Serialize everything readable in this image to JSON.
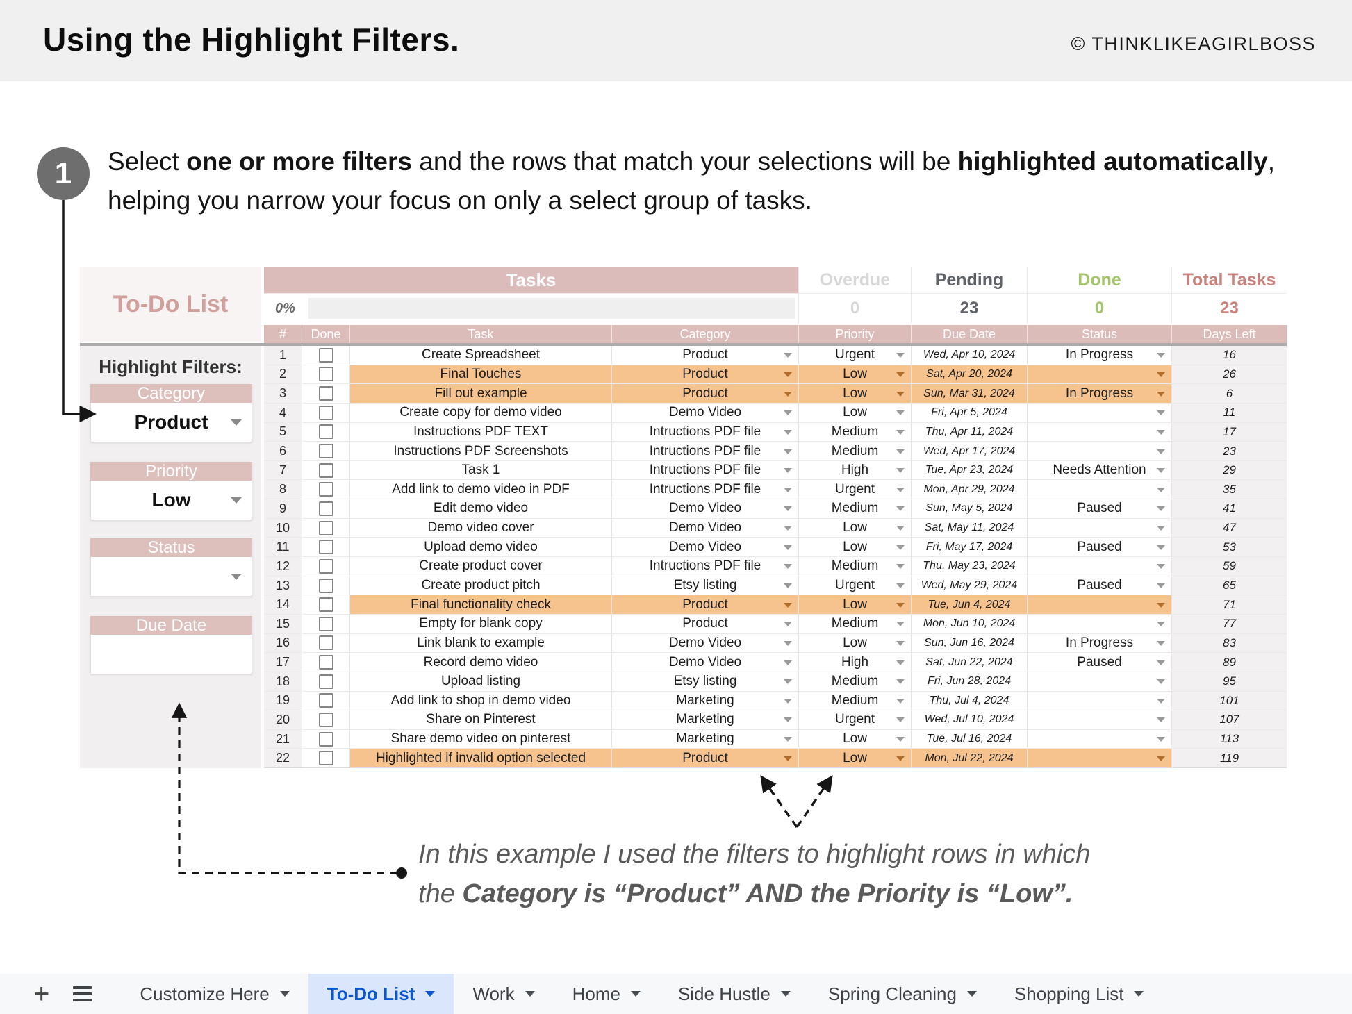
{
  "header": {
    "title": "Using the Highlight Filters.",
    "copyright": "© THINKLIKEAGIRLBOSS"
  },
  "step": {
    "number": "1",
    "t1": "Select ",
    "b1": "one or more filters",
    "t2": " and the rows that match your selections will be ",
    "b2": "highlighted automatically",
    "t3": ", helping you narrow your focus on only a select group of tasks."
  },
  "sheet": {
    "title": "To-Do List",
    "tasks_header": "Tasks",
    "progress": "0%",
    "stats": [
      {
        "label": "Overdue",
        "value": "0",
        "color": "#d8d8d8"
      },
      {
        "label": "Pending",
        "value": "23",
        "color": "#5f6368"
      },
      {
        "label": "Done",
        "value": "0",
        "color": "#a5c46c"
      },
      {
        "label": "Total Tasks",
        "value": "23",
        "color": "#c9837e"
      }
    ],
    "columns": [
      "#",
      "Done",
      "Task",
      "Category",
      "Priority",
      "Due Date",
      "Status",
      "Days Left"
    ],
    "rows": [
      {
        "num": "1",
        "task": "Create Spreadsheet",
        "category": "Product",
        "priority": "Urgent",
        "due": "Wed, Apr 10, 2024",
        "status": "In Progress",
        "days": "16",
        "highlight": false
      },
      {
        "num": "2",
        "task": "Final Touches",
        "category": "Product",
        "priority": "Low",
        "due": "Sat, Apr 20, 2024",
        "status": "",
        "days": "26",
        "highlight": true
      },
      {
        "num": "3",
        "task": "Fill out example",
        "category": "Product",
        "priority": "Low",
        "due": "Sun, Mar 31, 2024",
        "status": "In Progress",
        "days": "6",
        "highlight": true
      },
      {
        "num": "4",
        "task": "Create copy for demo video",
        "category": "Demo Video",
        "priority": "Low",
        "due": "Fri, Apr 5, 2024",
        "status": "",
        "days": "11",
        "highlight": false
      },
      {
        "num": "5",
        "task": "Instructions PDF TEXT",
        "category": "Intructions PDF file",
        "priority": "Medium",
        "due": "Thu, Apr 11, 2024",
        "status": "",
        "days": "17",
        "highlight": false
      },
      {
        "num": "6",
        "task": "Instructions PDF Screenshots",
        "category": "Intructions PDF file",
        "priority": "Medium",
        "due": "Wed, Apr 17, 2024",
        "status": "",
        "days": "23",
        "highlight": false
      },
      {
        "num": "7",
        "task": "Task 1",
        "category": "Intructions PDF file",
        "priority": "High",
        "due": "Tue, Apr 23, 2024",
        "status": "Needs Attention",
        "days": "29",
        "highlight": false
      },
      {
        "num": "8",
        "task": "Add link to demo video in PDF",
        "category": "Intructions PDF file",
        "priority": "Urgent",
        "due": "Mon, Apr 29, 2024",
        "status": "",
        "days": "35",
        "highlight": false
      },
      {
        "num": "9",
        "task": "Edit demo video",
        "category": "Demo Video",
        "priority": "Medium",
        "due": "Sun, May 5, 2024",
        "status": "Paused",
        "days": "41",
        "highlight": false
      },
      {
        "num": "10",
        "task": "Demo video cover",
        "category": "Demo Video",
        "priority": "Low",
        "due": "Sat, May 11, 2024",
        "status": "",
        "days": "47",
        "highlight": false
      },
      {
        "num": "11",
        "task": "Upload demo video",
        "category": "Demo Video",
        "priority": "Low",
        "due": "Fri, May 17, 2024",
        "status": "Paused",
        "days": "53",
        "highlight": false
      },
      {
        "num": "12",
        "task": "Create product cover",
        "category": "Intructions PDF file",
        "priority": "Medium",
        "due": "Thu, May 23, 2024",
        "status": "",
        "days": "59",
        "highlight": false
      },
      {
        "num": "13",
        "task": "Create product pitch",
        "category": "Etsy listing",
        "priority": "Urgent",
        "due": "Wed, May 29, 2024",
        "status": "Paused",
        "days": "65",
        "highlight": false
      },
      {
        "num": "14",
        "task": "Final functionality check",
        "category": "Product",
        "priority": "Low",
        "due": "Tue, Jun 4, 2024",
        "status": "",
        "days": "71",
        "highlight": true
      },
      {
        "num": "15",
        "task": "Empty for blank copy",
        "category": "Product",
        "priority": "Medium",
        "due": "Mon, Jun 10, 2024",
        "status": "",
        "days": "77",
        "highlight": false
      },
      {
        "num": "16",
        "task": "Link blank to example",
        "category": "Demo Video",
        "priority": "Low",
        "due": "Sun, Jun 16, 2024",
        "status": "In Progress",
        "days": "83",
        "highlight": false
      },
      {
        "num": "17",
        "task": "Record demo video",
        "category": "Demo Video",
        "priority": "High",
        "due": "Sat, Jun 22, 2024",
        "status": "Paused",
        "days": "89",
        "highlight": false
      },
      {
        "num": "18",
        "task": "Upload listing",
        "category": "Etsy listing",
        "priority": "Medium",
        "due": "Fri, Jun 28, 2024",
        "status": "",
        "days": "95",
        "highlight": false
      },
      {
        "num": "19",
        "task": "Add link to shop in demo video",
        "category": "Marketing",
        "priority": "Medium",
        "due": "Thu, Jul 4, 2024",
        "status": "",
        "days": "101",
        "highlight": false
      },
      {
        "num": "20",
        "task": "Share on Pinterest",
        "category": "Marketing",
        "priority": "Urgent",
        "due": "Wed, Jul 10, 2024",
        "status": "",
        "days": "107",
        "highlight": false
      },
      {
        "num": "21",
        "task": "Share demo video on pinterest",
        "category": "Marketing",
        "priority": "Low",
        "due": "Tue, Jul 16, 2024",
        "status": "",
        "days": "113",
        "highlight": false
      },
      {
        "num": "22",
        "task": "Highlighted if invalid option selected",
        "category": "Product",
        "priority": "Low",
        "due": "Mon, Jul 22, 2024",
        "status": "",
        "days": "119",
        "highlight": true
      }
    ]
  },
  "filters": {
    "title": "Highlight Filters:",
    "items": [
      {
        "label": "Category",
        "value": "Product",
        "dropdown": true
      },
      {
        "label": "Priority",
        "value": "Low",
        "dropdown": true
      },
      {
        "label": "Status",
        "value": "",
        "dropdown": true
      },
      {
        "label": "Due Date",
        "value": "",
        "dropdown": false
      }
    ]
  },
  "annotation": {
    "line1": "In this example I used the filters to highlight rows in which",
    "line2_prefix": "the ",
    "line2_bold": "Category is “Product” AND the Priority is “Low”."
  },
  "tabbar": {
    "tabs": [
      {
        "label": "Customize Here",
        "active": false
      },
      {
        "label": "To-Do List",
        "active": true
      },
      {
        "label": "Work",
        "active": false
      },
      {
        "label": "Home",
        "active": false
      },
      {
        "label": "Side Hustle",
        "active": false
      },
      {
        "label": "Spring Cleaning",
        "active": false
      },
      {
        "label": "Shopping List",
        "active": false
      }
    ]
  },
  "colors": {
    "highlight_row": "#f6c28e",
    "highlight_caret": "#b06e2a",
    "rose": "#dcbcb9",
    "accent_blue": "#0b57d0",
    "green": "#a5c46c"
  }
}
